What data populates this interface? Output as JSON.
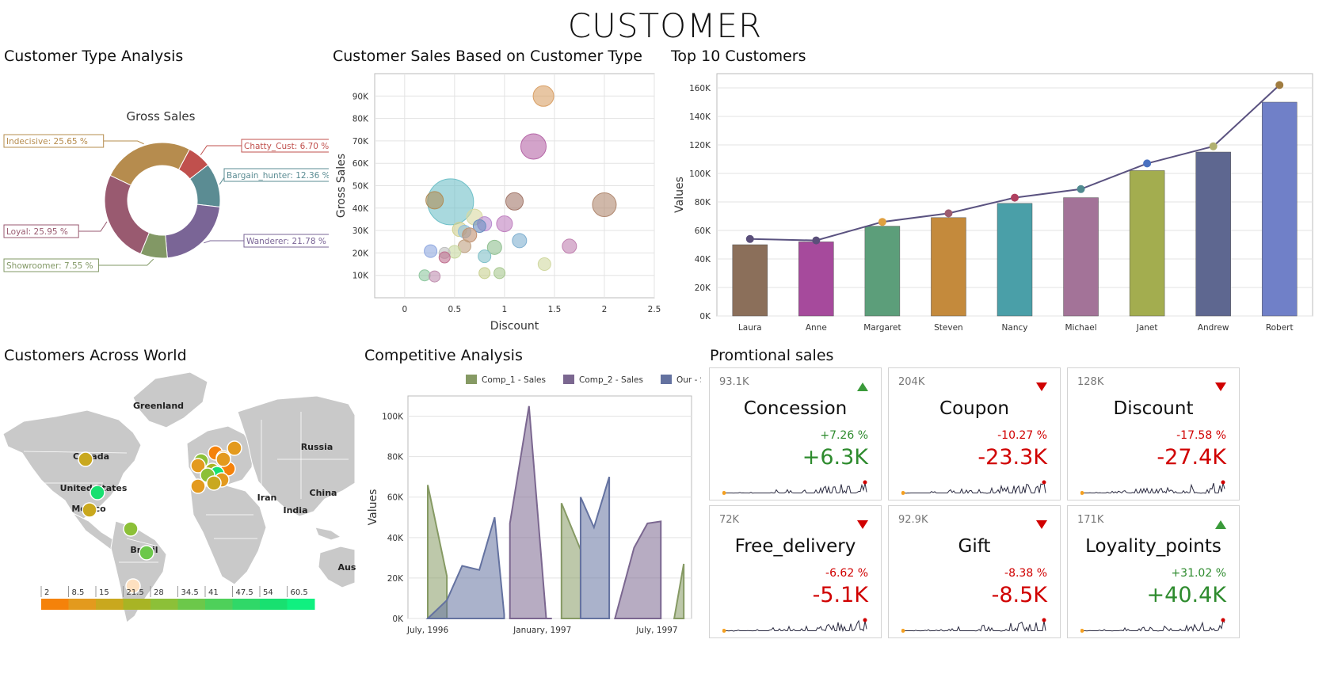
{
  "dashboard": {
    "title": "CUSTOMER"
  },
  "panels": {
    "customer_type": {
      "title": "Customer Type Analysis"
    },
    "scatter": {
      "title": "Customer Sales Based on Customer Type"
    },
    "top10": {
      "title": "Top 10 Customers"
    },
    "world": {
      "title": "Customers Across World"
    },
    "competitive": {
      "title": "Competitive Analysis"
    },
    "promo": {
      "title": "Promtional sales"
    }
  },
  "chart_data": [
    {
      "type": "pie",
      "id": "customer_type",
      "title": "Gross Sales",
      "style": "donut",
      "slices": [
        {
          "label": "Chatty_Cust: 6.70 %",
          "name": "Chatty_Cust",
          "value": 6.7,
          "color": "#c0504d"
        },
        {
          "label": "Bargain_hunter: 12.36 %",
          "name": "Bargain_hunter",
          "value": 12.36,
          "color": "#5b8c93"
        },
        {
          "label": "Wanderer: 21.78 %",
          "name": "Wanderer",
          "value": 21.78,
          "color": "#7a6596"
        },
        {
          "label": "Showroomer: 7.55 %",
          "name": "Showroomer",
          "value": 7.55,
          "color": "#829865"
        },
        {
          "label": "Loyal: 25.95 %",
          "name": "Loyal",
          "value": 25.95,
          "color": "#995a70"
        },
        {
          "label": "Indecisive: 25.65 %",
          "name": "Indecisive",
          "value": 25.65,
          "color": "#b68c4e"
        }
      ]
    },
    {
      "type": "scatter",
      "id": "scatter",
      "xlabel": "Discount",
      "ylabel": "Gross Sales",
      "xlim": [
        -0.3,
        2.5
      ],
      "ylim": [
        0,
        100000
      ],
      "xticks": [
        "0",
        "0.5",
        "1",
        "1.5",
        "2",
        "2.5"
      ],
      "xtick_values": [
        0,
        0.5,
        1,
        1.5,
        2,
        2.5
      ],
      "yticks": [
        "10K",
        "20K",
        "30K",
        "40K",
        "50K",
        "60K",
        "70K",
        "80K",
        "90K"
      ],
      "ytick_values": [
        10000,
        20000,
        30000,
        40000,
        50000,
        60000,
        70000,
        80000,
        90000
      ],
      "points": [
        {
          "x": 1.39,
          "y": 90000,
          "r": 13,
          "color": "#d9a066"
        },
        {
          "x": 1.29,
          "y": 67500,
          "r": 16,
          "color": "#b565a7"
        },
        {
          "x": 0.46,
          "y": 42800,
          "r": 29,
          "color": "#6fc0c8"
        },
        {
          "x": 0.3,
          "y": 43500,
          "r": 11,
          "color": "#b08d57"
        },
        {
          "x": 1.1,
          "y": 43000,
          "r": 11,
          "color": "#a3786b"
        },
        {
          "x": 2.0,
          "y": 41500,
          "r": 15,
          "color": "#b08870"
        },
        {
          "x": 0.7,
          "y": 36000,
          "r": 10,
          "color": "#d8d9a0"
        },
        {
          "x": 0.8,
          "y": 33000,
          "r": 9,
          "color": "#b98cd0"
        },
        {
          "x": 1.0,
          "y": 33000,
          "r": 10,
          "color": "#c080c0"
        },
        {
          "x": 0.75,
          "y": 32000,
          "r": 8,
          "color": "#6a90c0"
        },
        {
          "x": 0.55,
          "y": 30500,
          "r": 9,
          "color": "#d0d090"
        },
        {
          "x": 0.6,
          "y": 29500,
          "r": 8,
          "color": "#90c0e0"
        },
        {
          "x": 0.65,
          "y": 28000,
          "r": 9,
          "color": "#c09070"
        },
        {
          "x": 1.15,
          "y": 25500,
          "r": 9,
          "color": "#80b0d0"
        },
        {
          "x": 1.65,
          "y": 23000,
          "r": 9,
          "color": "#c080b0"
        },
        {
          "x": 0.9,
          "y": 22500,
          "r": 9,
          "color": "#90c090"
        },
        {
          "x": 0.6,
          "y": 23000,
          "r": 8,
          "color": "#c0a080"
        },
        {
          "x": 0.26,
          "y": 20800,
          "r": 8,
          "color": "#90a8e0"
        },
        {
          "x": 0.5,
          "y": 20500,
          "r": 8,
          "color": "#c8d8a0"
        },
        {
          "x": 0.4,
          "y": 20000,
          "r": 7,
          "color": "#c0c0c0"
        },
        {
          "x": 0.8,
          "y": 18500,
          "r": 8,
          "color": "#80c0c8"
        },
        {
          "x": 0.4,
          "y": 18000,
          "r": 7,
          "color": "#c07090"
        },
        {
          "x": 1.4,
          "y": 15000,
          "r": 8,
          "color": "#d0d8a0"
        },
        {
          "x": 0.8,
          "y": 11000,
          "r": 7,
          "color": "#c8d090"
        },
        {
          "x": 0.95,
          "y": 11000,
          "r": 7,
          "color": "#a8c890"
        },
        {
          "x": 0.2,
          "y": 10000,
          "r": 7,
          "color": "#90c8a0"
        },
        {
          "x": 0.3,
          "y": 9500,
          "r": 7,
          "color": "#c090b0"
        }
      ]
    },
    {
      "type": "bar",
      "id": "top10",
      "ylabel": "Values",
      "ylim": [
        0,
        170000
      ],
      "yticks": [
        "0K",
        "20K",
        "40K",
        "60K",
        "80K",
        "100K",
        "120K",
        "140K",
        "160K"
      ],
      "ytick_values": [
        0,
        20000,
        40000,
        60000,
        80000,
        100000,
        120000,
        140000,
        160000
      ],
      "categories": [
        "Laura",
        "Anne",
        "Margaret",
        "Steven",
        "Nancy",
        "Michael",
        "Janet",
        "Andrew",
        "Robert"
      ],
      "values": [
        50000,
        52000,
        63000,
        69000,
        79000,
        83000,
        102000,
        115000,
        150000
      ],
      "colors": [
        "#8b6f5a",
        "#a64a9c",
        "#5c9e7a",
        "#c48a3c",
        "#4a9fa8",
        "#a37398",
        "#a3ad4f",
        "#5e6790",
        "#7080c8"
      ],
      "line_values": [
        54000,
        53000,
        66000,
        72000,
        83000,
        89000,
        107000,
        119000,
        162000
      ],
      "marker_colors": [
        "#5a4f7a",
        "#5a4f7a",
        "#e0a040",
        "#9c5c70",
        "#b04060",
        "#508a90",
        "#4a70c0",
        "#b0b070",
        "#a07c40"
      ]
    },
    {
      "type": "area",
      "id": "competitive",
      "ylabel": "Values",
      "ylim": [
        0,
        110000
      ],
      "yticks": [
        "0K",
        "20K",
        "40K",
        "60K",
        "80K",
        "100K"
      ],
      "ytick_values": [
        0,
        20000,
        40000,
        60000,
        80000,
        100000
      ],
      "xticks": [
        "July, 1996",
        "January, 1997",
        "July, 1997"
      ],
      "xtick_values": [
        0,
        6,
        12
      ],
      "legend": [
        {
          "name": "Comp_1 -  Sales",
          "color": "#869a64"
        },
        {
          "name": "Comp_2 -  Sales",
          "color": "#7b6790"
        },
        {
          "name": "Our -  Sales",
          "color": "#6472a0"
        }
      ],
      "series": [
        {
          "name": "Comp_1 -  Sales",
          "color": "#869a64",
          "points": [
            [
              0,
              66000
            ],
            [
              1,
              21000
            ]
          ],
          "extra": [
            [
              7,
              57000
            ],
            [
              8,
              34000
            ]
          ],
          "extra2": [
            [
              12.9,
              0
            ],
            [
              13.4,
              27000
            ]
          ]
        },
        {
          "name": "Our -  Sales",
          "color": "#6472a0",
          "points": [
            [
              0,
              0
            ],
            [
              1,
              9000
            ],
            [
              1.8,
              26000
            ],
            [
              2.7,
              24000
            ],
            [
              3.5,
              50000
            ],
            [
              4,
              2000
            ]
          ],
          "extra": [
            [
              8,
              60000
            ],
            [
              8.7,
              45000
            ],
            [
              9.5,
              70000
            ]
          ]
        },
        {
          "name": "Comp_2 -  Sales",
          "color": "#7b6790",
          "points": [
            [
              4.3,
              47000
            ],
            [
              5.3,
              105000
            ],
            [
              6.2,
              0
            ],
            [
              6.5,
              0
            ]
          ],
          "extra": [
            [
              9.8,
              0
            ],
            [
              10.8,
              35000
            ],
            [
              11.5,
              47000
            ],
            [
              12.2,
              48000
            ]
          ]
        }
      ]
    }
  ],
  "map": {
    "labels": [
      "Greenland",
      "Russia",
      "Canada",
      "United States",
      "Mexico",
      "Iran",
      "China",
      "India",
      "Brazil",
      "Aus"
    ],
    "legend_ticks": [
      "2",
      "8.5",
      "15",
      "21.5",
      "28",
      "34.5",
      "41",
      "47.5",
      "54",
      "60.5"
    ],
    "legend_colors": [
      "#f5820a",
      "#e39a1e",
      "#c9a81e",
      "#a8b424",
      "#8cc038",
      "#6cc84a",
      "#4ed05a",
      "#30d868",
      "#18e070",
      "#10f080"
    ]
  },
  "promo_cards": [
    {
      "name": "Concession",
      "value": "93.1K",
      "pct": "+7.26 %",
      "delta": "+6.3K",
      "trend": "up"
    },
    {
      "name": "Coupon",
      "value": "204K",
      "pct": "-10.27 %",
      "delta": "-23.3K",
      "trend": "down"
    },
    {
      "name": "Discount",
      "value": "128K",
      "pct": "-17.58 %",
      "delta": "-27.4K",
      "trend": "down"
    },
    {
      "name": "Free_delivery",
      "value": "72K",
      "pct": "-6.62 %",
      "delta": "-5.1K",
      "trend": "down"
    },
    {
      "name": "Gift",
      "value": "92.9K",
      "pct": "-8.38 %",
      "delta": "-8.5K",
      "trend": "down"
    },
    {
      "name": "Loyality_points",
      "value": "171K",
      "pct": "+31.02 %",
      "delta": "+40.4K",
      "trend": "up"
    }
  ]
}
